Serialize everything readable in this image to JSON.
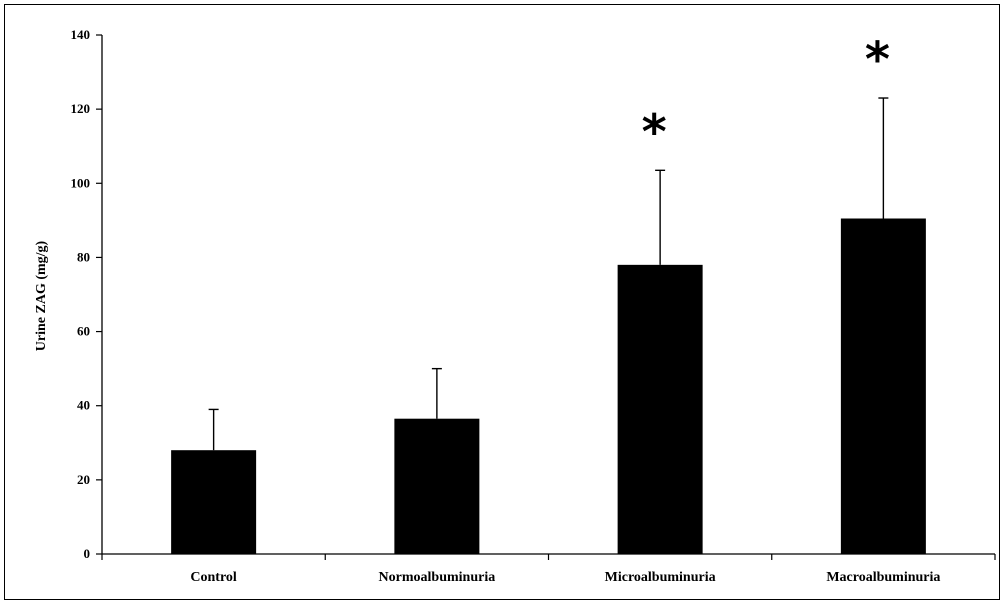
{
  "chart_data": {
    "type": "bar",
    "title": "",
    "xlabel": "",
    "ylabel": "Urine ZAG (mg/g)",
    "categories": [
      "Control",
      "Normoalbuminuria",
      "Microalbuminuria",
      "Macroalbuminuria"
    ],
    "values": [
      28,
      36.5,
      78,
      90.5
    ],
    "error_upper": [
      39,
      50,
      103.5,
      123
    ],
    "significance": [
      "",
      "",
      "*",
      "*"
    ],
    "ylim": [
      0,
      140
    ],
    "yticks": [
      0,
      20,
      40,
      60,
      80,
      100,
      120,
      140
    ],
    "ytick_labels": [
      "0",
      "20",
      "40",
      "60",
      "80",
      "100",
      "120",
      "140"
    ],
    "bar_color": "#000000",
    "grid": false,
    "legend": "none"
  }
}
